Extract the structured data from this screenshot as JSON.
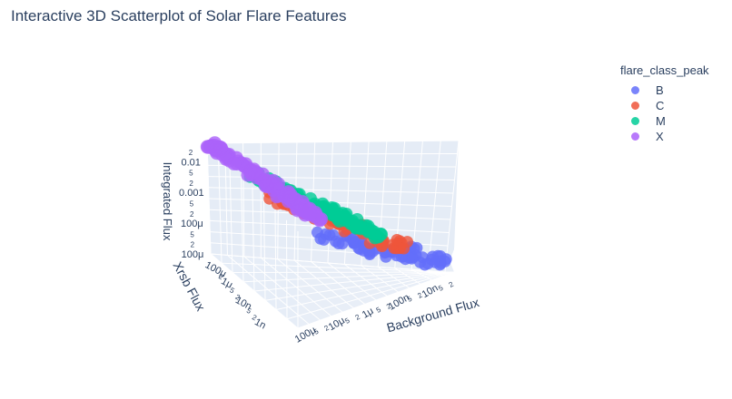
{
  "chart_data": {
    "type": "scatter",
    "title": "Interactive 3D Scatterplot of Solar Flare Features",
    "xlabel": "Background Flux",
    "ylabel": "Xrsb Flux",
    "zlabel": "Integrated Flux",
    "x_ticks": [
      "100μ",
      "5",
      "2",
      "10μ",
      "5",
      "2",
      "1μ",
      "5",
      "2",
      "100n",
      "5",
      "2",
      "10n",
      "5",
      "2"
    ],
    "y_ticks": [
      "100μ",
      "2",
      "1μ",
      "5",
      "2",
      "10n",
      "5",
      "2",
      "1n"
    ],
    "z_ticks": [
      "2",
      "0.01",
      "5",
      "2",
      "0.001",
      "5",
      "2",
      "100μ",
      "5",
      "2",
      "100μ"
    ],
    "legend_title": "flare_class_peak",
    "legend_position": "top-right",
    "series": [
      {
        "name": "B",
        "color": "#636efa"
      },
      {
        "name": "C",
        "color": "#EF553B"
      },
      {
        "name": "M",
        "color": "#00cc96"
      },
      {
        "name": "X",
        "color": "#ab63fa"
      }
    ]
  }
}
